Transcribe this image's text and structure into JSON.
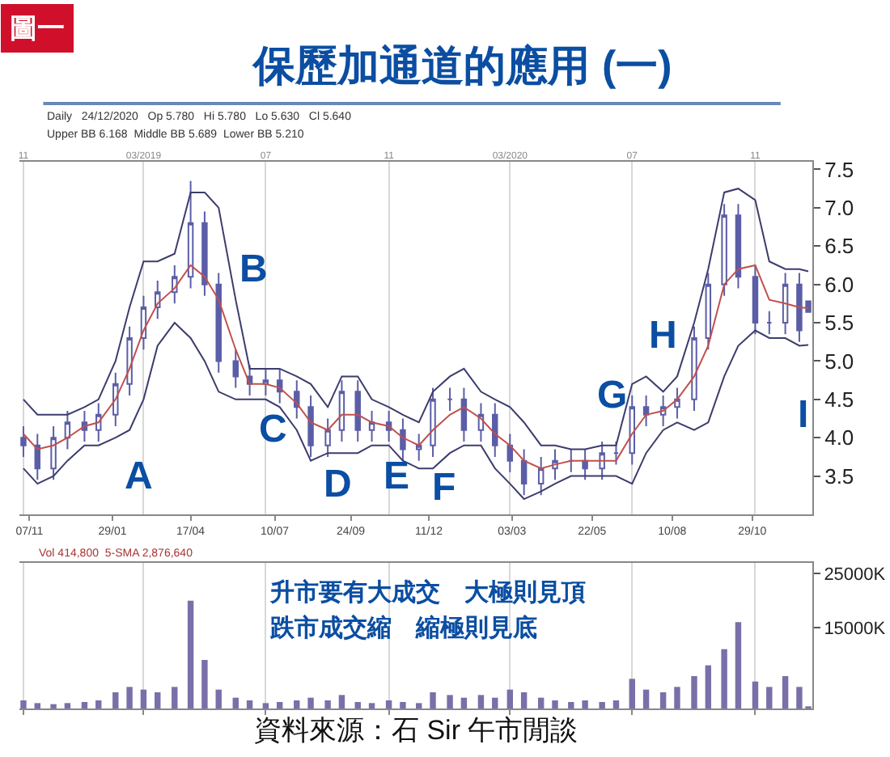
{
  "chart_data": [
    {
      "type": "candlestick",
      "title": "保歷加通道的應用 (一)",
      "x": [
        "2018-11-01",
        "2018-11-15",
        "2018-12-01",
        "2018-12-15",
        "2019-01-01",
        "2019-01-15",
        "2019-02-01",
        "2019-02-15",
        "2019-03-01",
        "2019-03-15",
        "2019-04-01",
        "2019-04-17",
        "2019-05-01",
        "2019-05-15",
        "2019-06-01",
        "2019-06-15",
        "2019-07-01",
        "2019-07-15",
        "2019-08-01",
        "2019-08-15",
        "2019-09-01",
        "2019-09-15",
        "2019-10-01",
        "2019-10-15",
        "2019-11-01",
        "2019-11-15",
        "2019-12-01",
        "2019-12-15",
        "2020-01-01",
        "2020-01-15",
        "2020-02-01",
        "2020-02-15",
        "2020-03-01",
        "2020-03-15",
        "2020-04-01",
        "2020-04-15",
        "2020-05-01",
        "2020-05-15",
        "2020-06-01",
        "2020-06-15",
        "2020-07-01",
        "2020-07-15",
        "2020-08-01",
        "2020-08-15",
        "2020-09-01",
        "2020-09-15",
        "2020-10-01",
        "2020-10-15",
        "2020-11-01",
        "2020-11-15",
        "2020-12-01",
        "2020-12-15",
        "2020-12-24"
      ],
      "series": [
        {
          "type": "line",
          "color": "#3c3c6e",
          "values": [
            4.5,
            4.3,
            4.3,
            4.3,
            4.4,
            4.5,
            5.0,
            5.7,
            6.3,
            6.3,
            6.4,
            7.2,
            7.2,
            7.0,
            5.8,
            4.9,
            4.9,
            4.9,
            4.8,
            4.7,
            4.4,
            4.8,
            4.8,
            4.5,
            4.4,
            4.3,
            4.2,
            4.6,
            4.8,
            4.9,
            4.6,
            4.5,
            4.4,
            4.2,
            3.9,
            3.9,
            3.85,
            3.85,
            3.9,
            3.9,
            4.7,
            4.8,
            4.6,
            4.8,
            5.5,
            6.2,
            7.2,
            7.25,
            7.1,
            6.3,
            6.2,
            6.2,
            6.17
          ]
        },
        {
          "type": "line",
          "color": "#c0504d",
          "values": [
            4.05,
            3.85,
            3.9,
            4.0,
            4.15,
            4.2,
            4.5,
            4.9,
            5.4,
            5.75,
            5.95,
            6.25,
            6.1,
            5.8,
            5.15,
            4.7,
            4.7,
            4.65,
            4.45,
            4.2,
            4.1,
            4.3,
            4.3,
            4.2,
            4.15,
            4.0,
            3.9,
            4.1,
            4.3,
            4.4,
            4.25,
            4.05,
            3.9,
            3.7,
            3.6,
            3.65,
            3.7,
            3.7,
            3.7,
            3.7,
            4.05,
            4.3,
            4.35,
            4.5,
            4.8,
            5.2,
            6.0,
            6.2,
            6.25,
            5.8,
            5.75,
            5.7,
            5.69
          ]
        },
        {
          "type": "line",
          "color": "#3c3c6e",
          "values": [
            3.6,
            3.4,
            3.5,
            3.7,
            3.9,
            3.9,
            4.0,
            4.1,
            4.5,
            5.2,
            5.5,
            5.3,
            5.0,
            4.6,
            4.5,
            4.5,
            4.5,
            4.4,
            4.1,
            3.7,
            3.8,
            3.8,
            3.8,
            3.9,
            3.9,
            3.7,
            3.6,
            3.6,
            3.8,
            3.9,
            3.9,
            3.6,
            3.4,
            3.2,
            3.3,
            3.4,
            3.5,
            3.5,
            3.5,
            3.5,
            3.4,
            3.8,
            4.1,
            4.2,
            4.1,
            4.2,
            4.8,
            5.2,
            5.4,
            5.3,
            5.3,
            5.2,
            5.21
          ]
        },
        {
          "type": "candlestick",
          "color": "#5b5ea6",
          "ohlc": [
            [
              4.0,
              4.15,
              3.75,
              3.9
            ],
            [
              3.9,
              4.05,
              3.45,
              3.6
            ],
            [
              3.6,
              4.15,
              3.45,
              4.0
            ],
            [
              4.0,
              4.35,
              3.85,
              4.2
            ],
            [
              4.2,
              4.35,
              3.95,
              4.1
            ],
            [
              4.1,
              4.45,
              3.95,
              4.3
            ],
            [
              4.3,
              4.85,
              4.15,
              4.7
            ],
            [
              4.7,
              5.45,
              4.55,
              5.3
            ],
            [
              5.3,
              5.85,
              5.15,
              5.7
            ],
            [
              5.7,
              6.05,
              5.55,
              5.9
            ],
            [
              5.9,
              6.25,
              5.75,
              6.1
            ],
            [
              6.1,
              7.35,
              5.95,
              6.8
            ],
            [
              6.8,
              6.95,
              5.85,
              6.0
            ],
            [
              6.0,
              6.15,
              4.85,
              5.0
            ],
            [
              5.0,
              5.15,
              4.65,
              4.8
            ],
            [
              4.8,
              4.95,
              4.55,
              4.7
            ],
            [
              4.7,
              4.9,
              4.55,
              4.75
            ],
            [
              4.75,
              4.9,
              4.45,
              4.6
            ],
            [
              4.6,
              4.75,
              4.25,
              4.4
            ],
            [
              4.4,
              4.55,
              3.75,
              3.9
            ],
            [
              3.9,
              4.25,
              3.75,
              4.1
            ],
            [
              4.1,
              4.75,
              3.95,
              4.6
            ],
            [
              4.6,
              4.75,
              3.95,
              4.1
            ],
            [
              4.1,
              4.35,
              3.95,
              4.2
            ],
            [
              4.2,
              4.35,
              3.95,
              4.1
            ],
            [
              4.1,
              4.25,
              3.7,
              3.85
            ],
            [
              3.85,
              4.05,
              3.7,
              3.9
            ],
            [
              3.9,
              4.65,
              3.75,
              4.5
            ],
            [
              4.5,
              4.65,
              4.35,
              4.5
            ],
            [
              4.5,
              4.65,
              3.95,
              4.1
            ],
            [
              4.1,
              4.45,
              3.95,
              4.3
            ],
            [
              4.3,
              4.45,
              3.75,
              3.9
            ],
            [
              3.9,
              4.05,
              3.55,
              3.7
            ],
            [
              3.7,
              3.85,
              3.25,
              3.4
            ],
            [
              3.4,
              3.75,
              3.25,
              3.6
            ],
            [
              3.6,
              3.85,
              3.45,
              3.7
            ],
            [
              3.7,
              3.85,
              3.55,
              3.7
            ],
            [
              3.7,
              3.85,
              3.45,
              3.6
            ],
            [
              3.6,
              3.95,
              3.45,
              3.8
            ],
            [
              3.8,
              3.95,
              3.65,
              3.8
            ],
            [
              3.8,
              4.55,
              3.65,
              4.4
            ],
            [
              4.4,
              4.55,
              4.15,
              4.3
            ],
            [
              4.3,
              4.55,
              4.15,
              4.4
            ],
            [
              4.4,
              4.65,
              4.25,
              4.5
            ],
            [
              4.5,
              5.45,
              4.35,
              5.3
            ],
            [
              5.3,
              6.15,
              5.15,
              6.0
            ],
            [
              6.0,
              7.05,
              5.85,
              6.9
            ],
            [
              6.9,
              7.05,
              5.95,
              6.1
            ],
            [
              6.1,
              6.25,
              5.35,
              5.5
            ],
            [
              5.5,
              5.65,
              5.35,
              5.5
            ],
            [
              5.5,
              6.15,
              5.35,
              6.0
            ],
            [
              6.0,
              6.15,
              5.25,
              5.4
            ],
            [
              5.78,
              5.78,
              5.63,
              5.64
            ]
          ]
        }
      ],
      "xlim": [
        "2018-10-28",
        "2020-12-28"
      ],
      "xticks": [
        {
          "value": "2018-11-07",
          "label": "07/11"
        },
        {
          "value": "2019-01-29",
          "label": "29/01"
        },
        {
          "value": "2019-04-17",
          "label": "17/04"
        },
        {
          "value": "2019-07-10",
          "label": "10/07"
        },
        {
          "value": "2019-09-24",
          "label": "24/09"
        },
        {
          "value": "2019-12-11",
          "label": "11/12"
        },
        {
          "value": "2020-03-03",
          "label": "03/03"
        },
        {
          "value": "2020-05-22",
          "label": "22/05"
        },
        {
          "value": "2020-08-10",
          "label": "10/08"
        },
        {
          "value": "2020-10-29",
          "label": "29/10"
        }
      ],
      "x2lim": [
        "2018-10-28",
        "2020-12-28"
      ],
      "x2ticks": [
        {
          "value": "2018-11-01",
          "label": "11"
        },
        {
          "value": "2019-03-01",
          "label": "03/2019"
        },
        {
          "value": "2019-07-01",
          "label": "07"
        },
        {
          "value": "2019-11-01",
          "label": "11"
        },
        {
          "value": "2020-03-01",
          "label": "03/2020"
        },
        {
          "value": "2020-07-01",
          "label": "07"
        },
        {
          "value": "2020-11-01",
          "label": "11"
        }
      ],
      "ylim": [
        3.0,
        7.6
      ],
      "yticks": [
        3.5,
        {
          "value": 4,
          "label": "4.0"
        },
        4.5,
        {
          "value": 5,
          "label": "5.0"
        },
        5.5,
        {
          "value": 6,
          "label": "6.0"
        },
        6.5,
        {
          "value": 7,
          "label": "7.0"
        },
        7.5
      ],
      "grid": "x",
      "annotations": [
        "圖一",
        "Daily   24/12/2020   Op 5.780   Hi 5.780   Lo 5.630   Cl 5.640",
        "Upper BB 6.168  Middle BB 5.689  Lower BB 5.210",
        "A",
        "B",
        "C",
        "D",
        "E",
        "F",
        "G",
        "H",
        "I"
      ]
    },
    {
      "type": "bar",
      "color": "#7a6fa8",
      "x": [
        "2018-11-01",
        "2018-11-15",
        "2018-12-01",
        "2018-12-15",
        "2019-01-01",
        "2019-01-15",
        "2019-02-01",
        "2019-02-15",
        "2019-03-01",
        "2019-03-15",
        "2019-04-01",
        "2019-04-17",
        "2019-05-01",
        "2019-05-15",
        "2019-06-01",
        "2019-06-15",
        "2019-07-01",
        "2019-07-15",
        "2019-08-01",
        "2019-08-15",
        "2019-09-01",
        "2019-09-15",
        "2019-10-01",
        "2019-10-15",
        "2019-11-01",
        "2019-11-15",
        "2019-12-01",
        "2019-12-15",
        "2020-01-01",
        "2020-01-15",
        "2020-02-01",
        "2020-02-15",
        "2020-03-01",
        "2020-03-15",
        "2020-04-01",
        "2020-04-15",
        "2020-05-01",
        "2020-05-15",
        "2020-06-01",
        "2020-06-15",
        "2020-07-01",
        "2020-07-15",
        "2020-08-01",
        "2020-08-15",
        "2020-09-01",
        "2020-09-15",
        "2020-10-01",
        "2020-10-15",
        "2020-11-01",
        "2020-11-15",
        "2020-12-01",
        "2020-12-15",
        "2020-12-24"
      ],
      "values": [
        1500000,
        1000000,
        800000,
        1000000,
        1200000,
        1500000,
        3000000,
        4000000,
        3500000,
        3000000,
        4000000,
        20000000,
        9000000,
        3500000,
        2000000,
        1500000,
        1000000,
        1200000,
        1500000,
        2000000,
        1500000,
        2500000,
        1200000,
        1000000,
        1500000,
        1200000,
        1000000,
        3000000,
        2500000,
        2000000,
        2500000,
        2000000,
        3500000,
        3000000,
        2000000,
        1500000,
        1200000,
        1500000,
        1200000,
        1500000,
        5500000,
        3500000,
        3000000,
        4000000,
        6000000,
        8000000,
        11000000,
        16000000,
        5000000,
        4000000,
        6000000,
        4000000,
        400000
      ],
      "xlim": [
        "2018-10-28",
        "2020-12-28"
      ],
      "xticks": [
        {
          "value": "2018-11-01",
          "label": null
        },
        {
          "value": "2019-03-01",
          "label": null
        },
        {
          "value": "2019-07-01",
          "label": null
        },
        {
          "value": "2019-11-01",
          "label": null
        },
        {
          "value": "2020-03-01",
          "label": null
        },
        {
          "value": "2020-07-01",
          "label": null
        },
        {
          "value": "2020-11-01",
          "label": null
        }
      ],
      "ylim": [
        0,
        27000000
      ],
      "yticks": [
        {
          "value": 15000000,
          "label": "15000K"
        },
        {
          "value": 25000000,
          "label": "25000K"
        }
      ],
      "tick_labels": "y",
      "grid": "x",
      "annotations": [
        "Vol 414,800  5-SMA 2,876,640",
        "升市要有大成交　大極則見頂",
        "跌市成交縮　縮極則見底",
        "資料來源：石 Sir 午市閒談"
      ]
    }
  ]
}
